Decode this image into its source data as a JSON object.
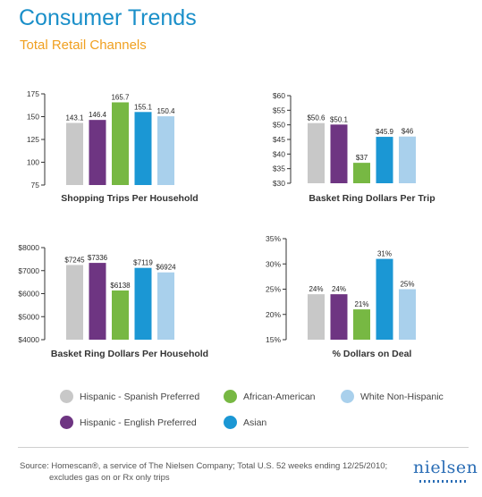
{
  "header": {
    "title": "Consumer Trends",
    "subtitle": "Total Retail Channels"
  },
  "colors": {
    "hispanic_spanish": "#c8c8c8",
    "hispanic_english": "#6e3582",
    "african_american": "#77b843",
    "asian": "#1b97d4",
    "white_non_hispanic": "#a9d0ec"
  },
  "chart_data": [
    {
      "type": "bar",
      "title": "Shopping Trips Per Household",
      "categories": [
        "Hispanic - Spanish Preferred",
        "Hispanic - English Preferred",
        "African-American",
        "Asian",
        "White Non-Hispanic"
      ],
      "values": [
        143.1,
        146.4,
        165.7,
        155.1,
        150.4
      ],
      "value_labels": [
        "143.1",
        "146.4",
        "165.7",
        "155.1",
        "150.4"
      ],
      "yticks": [
        75,
        100,
        125,
        150,
        175
      ],
      "ytick_labels": [
        "75",
        "100",
        "125",
        "150",
        "175"
      ],
      "ylim": [
        75,
        175
      ]
    },
    {
      "type": "bar",
      "title": "Basket Ring Dollars Per Trip",
      "categories": [
        "Hispanic - Spanish Preferred",
        "Hispanic - English Preferred",
        "African-American",
        "Asian",
        "White Non-Hispanic"
      ],
      "values": [
        50.6,
        50.1,
        37,
        45.9,
        46
      ],
      "value_labels": [
        "$50.6",
        "$50.1",
        "$37",
        "$45.9",
        "$46"
      ],
      "yticks": [
        30,
        35,
        40,
        45,
        50,
        55,
        60
      ],
      "ytick_labels": [
        "$30",
        "$35",
        "$40",
        "$45",
        "$50",
        "$55",
        "$60"
      ],
      "ylim": [
        30,
        60
      ]
    },
    {
      "type": "bar",
      "title": "Basket Ring Dollars Per Household",
      "categories": [
        "Hispanic - Spanish Preferred",
        "Hispanic - English Preferred",
        "African-American",
        "Asian",
        "White Non-Hispanic"
      ],
      "values": [
        7245,
        7336,
        6138,
        7119,
        6924
      ],
      "value_labels": [
        "$7245",
        "$7336",
        "$6138",
        "$7119",
        "$6924"
      ],
      "yticks": [
        4000,
        5000,
        6000,
        7000,
        8000
      ],
      "ytick_labels": [
        "$4000",
        "$5000",
        "$6000",
        "$7000",
        "$8000"
      ],
      "ylim": [
        4000,
        8000
      ]
    },
    {
      "type": "bar",
      "title": "% Dollars on Deal",
      "categories": [
        "Hispanic - Spanish Preferred",
        "Hispanic - English Preferred",
        "African-American",
        "Asian",
        "White Non-Hispanic"
      ],
      "values": [
        24,
        24,
        21,
        31,
        25
      ],
      "value_labels": [
        "24%",
        "24%",
        "21%",
        "31%",
        "25%"
      ],
      "yticks": [
        15,
        20,
        25,
        30,
        35
      ],
      "ytick_labels": [
        "15%",
        "20%",
        "25%",
        "30%",
        "35%"
      ],
      "ylim": [
        15,
        35
      ]
    }
  ],
  "legend": {
    "items": [
      {
        "label": "Hispanic - Spanish Preferred",
        "color": "#c8c8c8"
      },
      {
        "label": "African-American",
        "color": "#77b843"
      },
      {
        "label": "White Non-Hispanic",
        "color": "#a9d0ec"
      },
      {
        "label": "Hispanic - English Preferred",
        "color": "#6e3582"
      },
      {
        "label": "Asian",
        "color": "#1b97d4"
      }
    ]
  },
  "footer": {
    "source_line1": "Source: Homescan®, a service of The Nielsen Company; Total U.S. 52 weeks ending 12/25/2010;",
    "source_line2": "excludes gas on or Rx only trips",
    "logo": "nielsen"
  }
}
